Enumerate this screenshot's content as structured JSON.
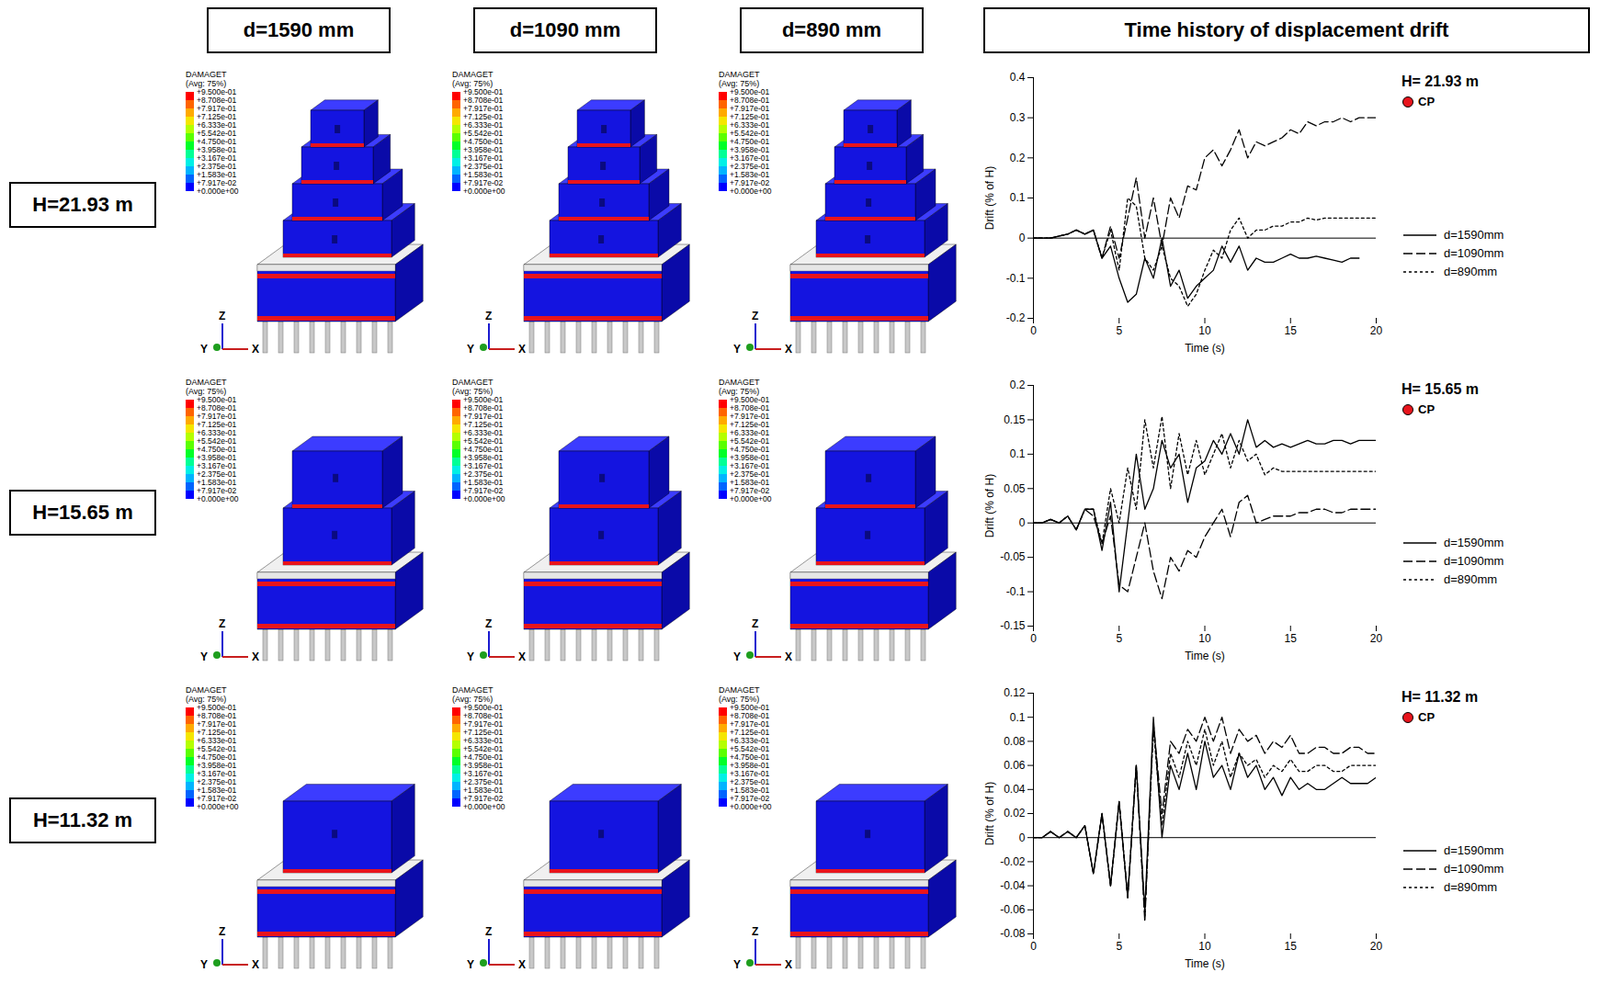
{
  "figure": {
    "column_headers": [
      "d=1590 mm",
      "d=1090 mm",
      "d=890 mm"
    ],
    "row_headers": [
      "H=21.93 m",
      "H=15.65 m",
      "H=11.32 m"
    ],
    "right_header": "Time history of displacement drift",
    "contour_legend": {
      "title": "DAMAGET",
      "subtitle": "(Avg: 75%)",
      "labels": [
        "+9.500e-01",
        "+8.708e-01",
        "+7.917e-01",
        "+7.125e-01",
        "+6.333e-01",
        "+5.542e-01",
        "+4.750e-01",
        "+3.958e-01",
        "+3.167e-01",
        "+2.375e-01",
        "+1.583e-01",
        "+7.917e-02",
        "+0.000e+00"
      ]
    },
    "axis_triad": {
      "z": "Z",
      "y": "Y",
      "x": "X"
    }
  },
  "chart_data": [
    {
      "type": "line",
      "title": "H= 21.93 m",
      "annotation": "CP",
      "x_label": "Time (s)",
      "y_label": "Drift (% of H)",
      "legend": "right",
      "x": [
        0,
        0.5,
        1,
        1.5,
        2,
        2.5,
        3,
        3.5,
        4,
        4.5,
        5,
        5.5,
        6,
        6.5,
        7,
        7.5,
        8,
        8.5,
        9,
        9.5,
        10,
        10.5,
        11,
        11.5,
        12,
        12.5,
        13,
        13.5,
        14,
        14.5,
        15,
        15.5,
        16,
        16.5,
        17,
        17.5,
        18,
        18.5,
        19,
        19.5,
        20
      ],
      "xlim": [
        0,
        20
      ],
      "xticks": [
        0,
        5,
        10,
        15,
        20
      ],
      "ylim": [
        -0.2,
        0.4
      ],
      "yticks": [
        -0.2,
        -0.1,
        0,
        0.1,
        0.2,
        0.3,
        0.4
      ],
      "series": [
        {
          "name": "d=1590mm",
          "color": "#000000",
          "line_style": "solid",
          "values": [
            0,
            0,
            0,
            0.005,
            0.01,
            0.02,
            0.01,
            0.02,
            -0.05,
            -0.02,
            -0.1,
            -0.16,
            -0.14,
            -0.05,
            -0.1,
            0.0,
            -0.12,
            -0.08,
            -0.15,
            -0.12,
            -0.1,
            -0.08,
            -0.02,
            -0.06,
            -0.02,
            -0.08,
            -0.05,
            -0.06,
            -0.06,
            -0.05,
            -0.04,
            -0.05,
            -0.05,
            -0.045,
            -0.05,
            -0.055,
            -0.06,
            -0.05,
            -0.05,
            null,
            null
          ]
        },
        {
          "name": "d=1090mm",
          "color": "#000000",
          "line_style": "long_dash",
          "values": [
            0,
            0,
            0,
            0.005,
            0.01,
            0.02,
            0.01,
            0.02,
            -0.05,
            0.03,
            -0.05,
            0.05,
            0.15,
            0.0,
            0.1,
            -0.02,
            0.1,
            0.05,
            0.13,
            0.12,
            0.2,
            0.22,
            0.18,
            0.22,
            0.27,
            0.2,
            0.24,
            0.23,
            0.24,
            0.25,
            0.27,
            0.26,
            0.29,
            0.28,
            0.29,
            0.29,
            0.3,
            0.29,
            0.3,
            0.3,
            0.3
          ]
        },
        {
          "name": "d=890mm",
          "color": "#000000",
          "line_style": "short_dash",
          "values": [
            0,
            0,
            0,
            0.005,
            0.01,
            0.02,
            0.01,
            0.02,
            -0.05,
            0.02,
            -0.08,
            0.1,
            0.08,
            -0.05,
            -0.08,
            -0.02,
            -0.1,
            -0.12,
            -0.17,
            -0.14,
            -0.08,
            -0.03,
            -0.05,
            0.02,
            0.05,
            0.0,
            0.02,
            0.02,
            0.03,
            0.03,
            0.04,
            0.04,
            0.05,
            0.045,
            0.05,
            0.05,
            0.05,
            0.05,
            0.05,
            0.05,
            0.05
          ]
        }
      ]
    },
    {
      "type": "line",
      "title": "H= 15.65 m",
      "annotation": "CP",
      "x_label": "Time (s)",
      "y_label": "Drift (% of H)",
      "legend": "right",
      "x": [
        0,
        0.5,
        1,
        1.5,
        2,
        2.5,
        3,
        3.5,
        4,
        4.5,
        5,
        5.5,
        6,
        6.5,
        7,
        7.5,
        8,
        8.5,
        9,
        9.5,
        10,
        10.5,
        11,
        11.5,
        12,
        12.5,
        13,
        13.5,
        14,
        14.5,
        15,
        15.5,
        16,
        16.5,
        17,
        17.5,
        18,
        18.5,
        19,
        19.5,
        20
      ],
      "xlim": [
        0,
        20
      ],
      "xticks": [
        0,
        5,
        10,
        15,
        20
      ],
      "ylim": [
        -0.15,
        0.2
      ],
      "yticks": [
        -0.15,
        -0.1,
        -0.05,
        0,
        0.05,
        0.1,
        0.15,
        0.2
      ],
      "series": [
        {
          "name": "d=1590mm",
          "color": "#000000",
          "line_style": "solid",
          "values": [
            0,
            0,
            0.005,
            0,
            0.01,
            -0.01,
            0.02,
            0.02,
            -0.04,
            0.03,
            -0.1,
            0.0,
            0.1,
            0.02,
            0.05,
            0.12,
            0.08,
            0.1,
            0.03,
            0.08,
            0.09,
            0.12,
            0.1,
            0.13,
            0.1,
            0.15,
            0.11,
            0.12,
            0.11,
            0.115,
            0.11,
            0.115,
            0.12,
            0.115,
            0.115,
            0.12,
            0.12,
            0.115,
            0.12,
            0.12,
            0.12
          ]
        },
        {
          "name": "d=1090mm",
          "color": "#000000",
          "line_style": "long_dash",
          "values": [
            0,
            0,
            0.005,
            0,
            0.01,
            -0.01,
            0.02,
            0.01,
            -0.03,
            0.01,
            -0.09,
            -0.1,
            -0.05,
            0.0,
            -0.07,
            -0.11,
            -0.05,
            -0.07,
            -0.04,
            -0.05,
            -0.02,
            0.0,
            0.02,
            -0.02,
            0.03,
            0.04,
            0.0,
            0.005,
            0.01,
            0.01,
            0.01,
            0.015,
            0.015,
            0.02,
            0.02,
            0.015,
            0.015,
            0.02,
            0.02,
            0.02,
            0.02
          ]
        },
        {
          "name": "d=890mm",
          "color": "#000000",
          "line_style": "short_dash",
          "values": [
            0,
            0,
            0.005,
            0,
            0.01,
            -0.01,
            0.02,
            0.02,
            -0.03,
            0.05,
            0.0,
            0.08,
            0.02,
            0.15,
            0.08,
            0.155,
            0.05,
            0.13,
            0.07,
            0.12,
            0.07,
            0.1,
            0.13,
            0.08,
            0.12,
            0.09,
            0.1,
            0.07,
            0.08,
            0.075,
            0.075,
            0.075,
            0.075,
            0.075,
            0.075,
            0.075,
            0.075,
            0.075,
            0.075,
            0.075,
            0.075
          ]
        }
      ]
    },
    {
      "type": "line",
      "title": "H= 11.32 m",
      "annotation": "CP",
      "x_label": "Time (s)",
      "y_label": "Drift (% of H)",
      "legend": "right",
      "x": [
        0,
        0.5,
        1,
        1.5,
        2,
        2.5,
        3,
        3.5,
        4,
        4.5,
        5,
        5.5,
        6,
        6.5,
        7,
        7.5,
        8,
        8.5,
        9,
        9.5,
        10,
        10.5,
        11,
        11.5,
        12,
        12.5,
        13,
        13.5,
        14,
        14.5,
        15,
        15.5,
        16,
        16.5,
        17,
        17.5,
        18,
        18.5,
        19,
        19.5,
        20
      ],
      "xlim": [
        0,
        20
      ],
      "xticks": [
        0,
        5,
        10,
        15,
        20
      ],
      "ylim": [
        -0.08,
        0.12
      ],
      "yticks": [
        -0.08,
        -0.06,
        -0.04,
        -0.02,
        0,
        0.02,
        0.04,
        0.06,
        0.08,
        0.1,
        0.12
      ],
      "series": [
        {
          "name": "d=1590mm",
          "color": "#000000",
          "line_style": "solid",
          "values": [
            0,
            0,
            0.005,
            0,
            0.005,
            0,
            0.01,
            -0.03,
            0.02,
            -0.04,
            0.03,
            -0.05,
            0.06,
            -0.06,
            0.1,
            0.0,
            0.06,
            0.04,
            0.07,
            0.04,
            0.08,
            0.05,
            0.06,
            0.04,
            0.07,
            0.05,
            0.06,
            0.04,
            0.05,
            0.035,
            0.05,
            0.04,
            0.045,
            0.04,
            0.04,
            0.045,
            0.05,
            0.045,
            0.045,
            0.045,
            0.05
          ]
        },
        {
          "name": "d=1090mm",
          "color": "#000000",
          "line_style": "long_dash",
          "values": [
            0,
            0,
            0.005,
            0,
            0.005,
            0,
            0.01,
            -0.03,
            0.02,
            -0.04,
            0.03,
            -0.05,
            0.06,
            -0.07,
            0.095,
            0.02,
            0.08,
            0.07,
            0.09,
            0.08,
            0.1,
            0.08,
            0.1,
            0.07,
            0.09,
            0.08,
            0.085,
            0.07,
            0.08,
            0.075,
            0.085,
            0.07,
            0.07,
            0.075,
            0.075,
            0.07,
            0.07,
            0.075,
            0.075,
            0.07,
            0.07
          ]
        },
        {
          "name": "d=890mm",
          "color": "#000000",
          "line_style": "short_dash",
          "values": [
            0,
            0,
            0.005,
            0,
            0.005,
            0,
            0.01,
            -0.03,
            0.02,
            -0.04,
            0.03,
            -0.05,
            0.06,
            -0.065,
            0.09,
            0.01,
            0.07,
            0.05,
            0.08,
            0.06,
            0.09,
            0.06,
            0.08,
            0.05,
            0.07,
            0.06,
            0.065,
            0.05,
            0.06,
            0.055,
            0.065,
            0.055,
            0.055,
            0.06,
            0.06,
            0.055,
            0.055,
            0.06,
            0.06,
            0.06,
            0.06
          ]
        }
      ]
    }
  ]
}
